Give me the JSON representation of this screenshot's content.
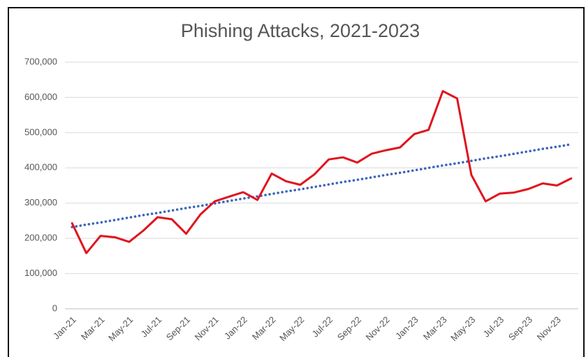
{
  "chart_data": {
    "type": "line",
    "title": "Phishing Attacks, 2021-2023",
    "categories": [
      "Jan-21",
      null,
      "Mar-21",
      null,
      "May-21",
      null,
      "Jul-21",
      null,
      "Sep-21",
      null,
      "Nov-21",
      null,
      "Jan-22",
      null,
      "Mar-22",
      null,
      "May-22",
      null,
      "Jul-22",
      null,
      "Sep-22",
      null,
      "Nov-22",
      null,
      "Jan-23",
      null,
      "Mar-23",
      null,
      "May-23",
      null,
      "Jul-23",
      null,
      "Sep-23",
      null,
      "Nov-23",
      null
    ],
    "series": [
      {
        "color": "#e0141e",
        "values": [
          243000,
          158000,
          207000,
          203000,
          190000,
          222000,
          260000,
          254000,
          213000,
          268000,
          305000,
          318000,
          331000,
          309000,
          384000,
          362000,
          352000,
          382000,
          424000,
          430000,
          415000,
          440000,
          450000,
          458000,
          496000,
          508000,
          618000,
          597000,
          380000,
          305000,
          327000,
          330000,
          340000,
          356000,
          350000,
          370000
        ]
      },
      {
        "color": "#3a63b8",
        "dotted": true,
        "values": [
          232000,
          239000,
          245000,
          252000,
          259000,
          266000,
          272000,
          279000,
          286000,
          292000,
          299000,
          306000,
          313000,
          319000,
          326000,
          333000,
          339000,
          346000,
          353000,
          360000,
          366000,
          373000,
          380000,
          386000,
          393000,
          400000,
          407000,
          413000,
          420000,
          427000,
          433000,
          440000,
          447000,
          454000,
          460000,
          467000
        ]
      }
    ],
    "ylim": [
      0,
      700000
    ],
    "yticks": [
      0,
      {
        "value": 100000,
        "label": "100,000"
      },
      {
        "value": 200000,
        "label": "200,000"
      },
      {
        "value": 300000,
        "label": "300,000"
      },
      {
        "value": 400000,
        "label": "400,000"
      },
      {
        "value": 500000,
        "label": "500,000"
      },
      {
        "value": 600000,
        "label": "600,000"
      },
      {
        "value": 700000,
        "label": "700,000"
      }
    ],
    "grid": true
  }
}
